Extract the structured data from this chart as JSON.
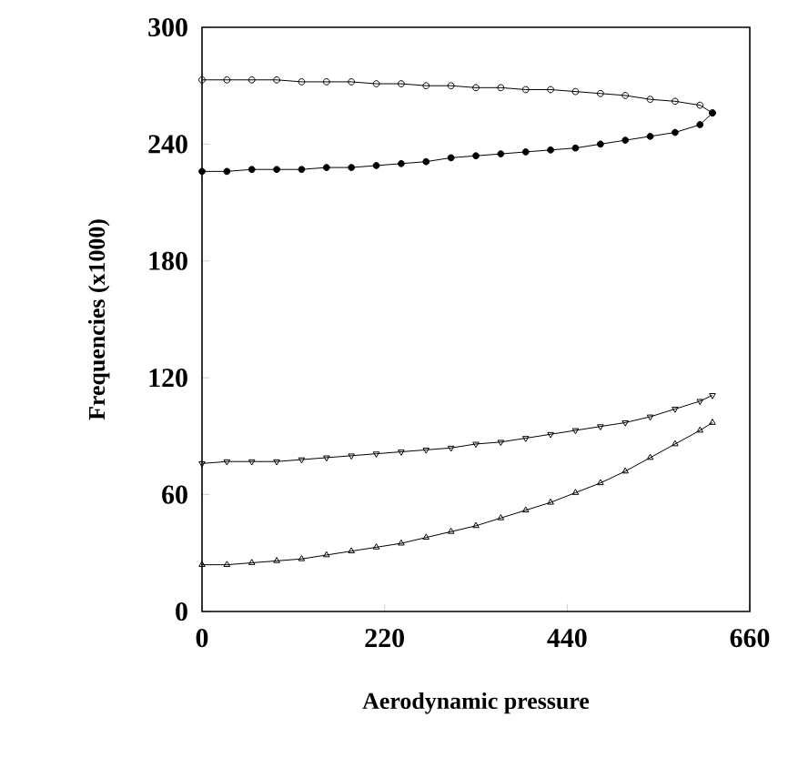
{
  "chart_data": {
    "type": "line",
    "xlabel": "Aerodynamic pressure",
    "ylabel": "Frequencies (x1000)",
    "xlim": [
      0,
      660
    ],
    "ylim": [
      0,
      300
    ],
    "xticks": [
      0,
      220,
      440,
      660
    ],
    "yticks": [
      0,
      60,
      120,
      180,
      240,
      300
    ],
    "line_style": "solid",
    "x": [
      0,
      30,
      60,
      90,
      120,
      150,
      180,
      210,
      240,
      270,
      300,
      330,
      360,
      390,
      420,
      450,
      480,
      510,
      540,
      570,
      600,
      615
    ],
    "series": [
      {
        "color": "#000000",
        "marker": "circle",
        "values": [
          273,
          273,
          273,
          273,
          272,
          272,
          272,
          271,
          271,
          270,
          270,
          269,
          269,
          268,
          268,
          267,
          266,
          265,
          263,
          262,
          260,
          256
        ]
      },
      {
        "color": "#000000",
        "marker": "circle",
        "values": [
          226,
          226,
          227,
          227,
          227,
          228,
          228,
          229,
          230,
          231,
          233,
          234,
          235,
          236,
          237,
          238,
          240,
          242,
          244,
          246,
          250,
          256
        ]
      },
      {
        "color": "#000000",
        "marker": "triangle",
        "values": [
          76,
          77,
          77,
          77,
          78,
          79,
          80,
          81,
          82,
          83,
          84,
          86,
          87,
          89,
          91,
          93,
          95,
          97,
          100,
          104,
          108,
          111
        ]
      },
      {
        "color": "#000000",
        "marker": "triangle",
        "values": [
          24,
          24,
          25,
          26,
          27,
          29,
          31,
          33,
          35,
          38,
          41,
          44,
          48,
          52,
          56,
          61,
          66,
          72,
          79,
          86,
          93,
          97
        ]
      }
    ]
  }
}
